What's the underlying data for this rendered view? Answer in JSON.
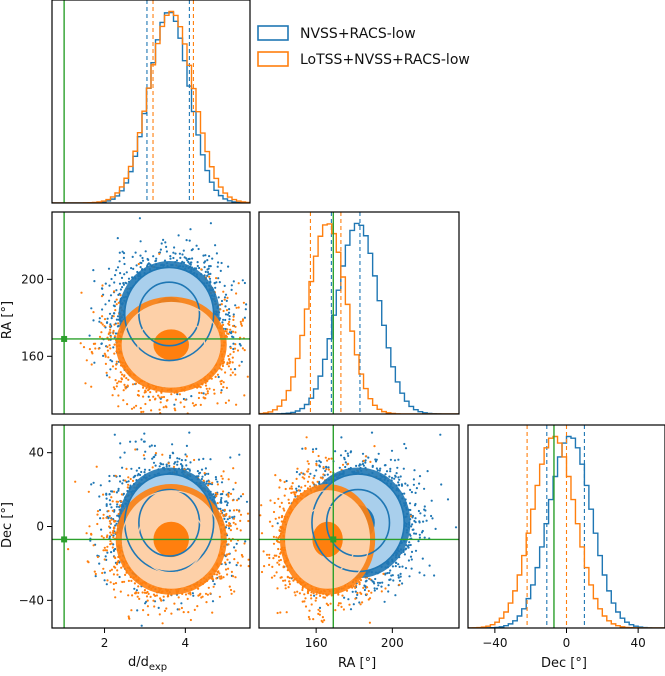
{
  "colors": {
    "series_a": "#1f77b4",
    "series_a_light": "#a9cfec",
    "series_b": "#ff7f0e",
    "series_b_light": "#fdd0a8",
    "truth": "#2ca02c"
  },
  "legend": {
    "position": "top-right",
    "entries": [
      {
        "label": "NVSS+RACS-low",
        "color": "#1f77b4"
      },
      {
        "label": "LoTSS+NVSS+RACS-low",
        "color": "#ff7f0e"
      }
    ]
  },
  "chart_data": {
    "type": "corner",
    "parameters": [
      {
        "key": "d",
        "label_main": "d/d",
        "label_sub": "exp",
        "range": [
          0.7,
          5.6
        ],
        "ticks": [
          2,
          4
        ],
        "truth": 1.0
      },
      {
        "key": "ra",
        "label": "RA [°]",
        "range": [
          130,
          235
        ],
        "ticks": [
          160,
          200
        ],
        "truth": 169
      },
      {
        "key": "dec",
        "label": "Dec [°]",
        "range": [
          -55,
          55
        ],
        "ticks": [
          -40,
          0,
          40
        ],
        "truth": -7
      }
    ],
    "series": [
      {
        "name": "NVSS+RACS-low",
        "color": "#1f77b4",
        "mean": {
          "d": 3.6,
          "ra": 182,
          "dec": 2
        },
        "std": {
          "d": 0.5,
          "ra": 11,
          "dec": 12
        },
        "quantiles": {
          "d": [
            3.05,
            4.1
          ],
          "ra": [
            168,
            183
          ],
          "dec": [
            -11,
            10
          ]
        }
      },
      {
        "name": "LoTSS+NVSS+RACS-low",
        "color": "#ff7f0e",
        "mean": {
          "d": 3.65,
          "ra": 166,
          "dec": -7
        },
        "std": {
          "d": 0.55,
          "ra": 10,
          "dec": 12
        },
        "quantiles": {
          "d": [
            3.2,
            4.2
          ],
          "ra": [
            157,
            173
          ],
          "dec": [
            -22,
            0
          ]
        }
      }
    ],
    "panels": {
      "d_hist": {
        "xlim": [
          0.7,
          5.6
        ]
      },
      "ra_d": {
        "xlim": [
          0.7,
          5.6
        ],
        "ylim": [
          130,
          235
        ],
        "yticks": [
          160,
          200
        ],
        "ylabel": "RA [°]"
      },
      "ra_hist": {
        "xlim": [
          130,
          235
        ]
      },
      "dec_d": {
        "xlim": [
          0.7,
          5.6
        ],
        "ylim": [
          -55,
          55
        ],
        "xticks": [
          2,
          4
        ],
        "yticks": [
          -40,
          0,
          40
        ],
        "ylabel": "Dec [°]"
      },
      "dec_ra": {
        "xlim": [
          130,
          235
        ],
        "ylim": [
          -55,
          55
        ],
        "xticks": [
          160,
          200
        ],
        "xlabel": "RA [°]"
      },
      "dec_hist": {
        "xlim": [
          -55,
          55
        ],
        "xticks": [
          -40,
          0,
          40
        ],
        "xlabel": "Dec [°]"
      }
    },
    "grid": false
  }
}
